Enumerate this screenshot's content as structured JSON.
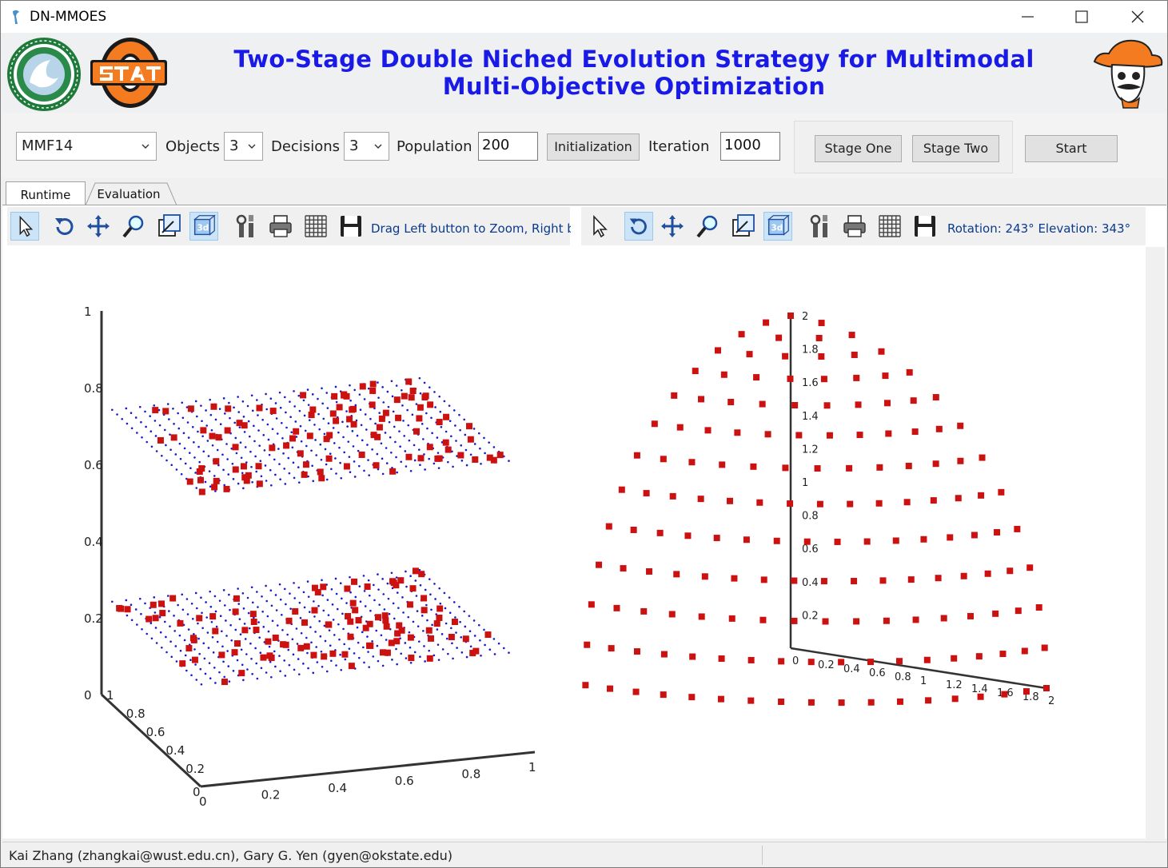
{
  "window": {
    "title": "DN-MMOES"
  },
  "banner": {
    "title_line1": "Two-Stage Double Niched Evolution Strategy for Multimodal",
    "title_line2": "Multi-Objective Optimization",
    "colors": {
      "title": "#1a1ae6"
    }
  },
  "controls": {
    "problem": "MMF14",
    "objects_label": "Objects",
    "objects_value": "3",
    "decisions_label": "Decisions",
    "decisions_value": "3",
    "population_label": "Population",
    "population_value": "200",
    "init_button": "Initialization",
    "iteration_label": "Iteration",
    "iteration_value": "1000",
    "stage_one_button": "Stage One",
    "stage_two_button": "Stage Two",
    "start_button": "Start"
  },
  "tabs": [
    {
      "label": "Runtime"
    },
    {
      "label": "Evaluation"
    }
  ],
  "left_plot": {
    "hint": "Drag Left button to Zoom, Right bu",
    "tools": [
      "pointer-icon",
      "rotate-icon",
      "pan-icon",
      "zoom-icon",
      "zoom-box-icon",
      "3d-icon",
      "properties-icon",
      "print-icon",
      "grid-icon",
      "save-icon"
    ]
  },
  "right_plot": {
    "hint": "Rotation: 243° Elevation: 343°",
    "tools": [
      "pointer-icon",
      "rotate-icon",
      "pan-icon",
      "zoom-icon",
      "zoom-box-icon",
      "3d-icon",
      "properties-icon",
      "print-icon",
      "grid-icon",
      "save-icon"
    ]
  },
  "status": {
    "text": "Kai Zhang (zhangkai@wust.edu.cn),  Gary G. Yen (gyen@okstate.edu)"
  },
  "chart_data": [
    {
      "type": "scatter",
      "title": "",
      "projection": "3d",
      "x_ticks": [
        "0",
        "0.2",
        "0.4",
        "0.6",
        "0.8",
        "1"
      ],
      "y_ticks": [
        "0",
        "0.2",
        "0.4",
        "0.6",
        "0.8",
        "1"
      ],
      "z_ticks": [
        "0",
        "0.2",
        "0.4",
        "0.6",
        "0.8",
        "1"
      ],
      "xlim": [
        0,
        1
      ],
      "ylim": [
        0,
        1
      ],
      "zlim": [
        0,
        1
      ],
      "series": [
        {
          "marker": "dot-grid",
          "color": "#1a1acc",
          "z_levels": [
            0.25,
            0.75
          ]
        },
        {
          "marker": "square",
          "color": "#cc1111",
          "z_levels": [
            0.25,
            0.75
          ]
        }
      ]
    },
    {
      "type": "scatter",
      "title": "",
      "projection": "3d",
      "surface": "sphere",
      "radius": 2,
      "x_ticks": [
        "0",
        "0.2",
        "0.4",
        "0.6",
        "0.8",
        "1",
        "1.2",
        "1.4",
        "1.6",
        "1.8",
        "2"
      ],
      "z_ticks": [
        "0",
        "0.2",
        "0.4",
        "0.6",
        "0.8",
        "1",
        "1.2",
        "1.4",
        "1.6",
        "1.8",
        "2"
      ],
      "xlim": [
        0,
        2
      ],
      "zlim": [
        0,
        2
      ],
      "series": [
        {
          "marker": "square",
          "color": "#cc1111"
        }
      ]
    }
  ]
}
